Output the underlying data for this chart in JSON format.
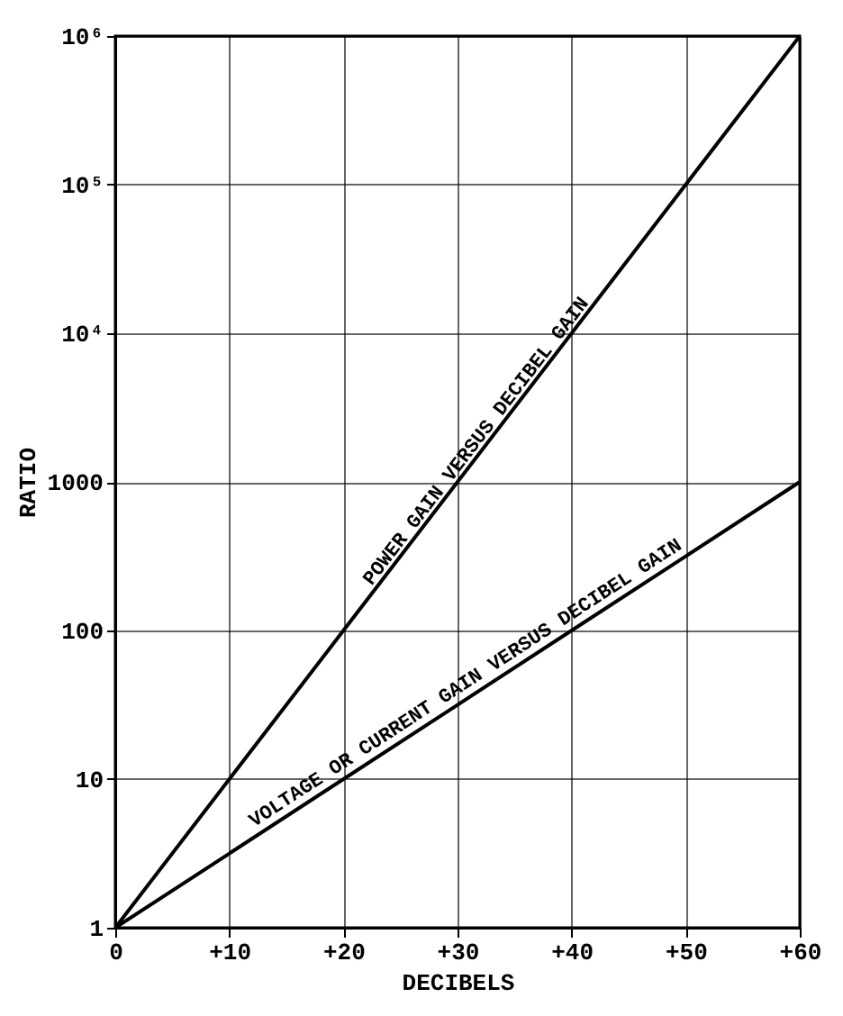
{
  "chart_data": {
    "type": "line",
    "xlabel": "DECIBELS",
    "ylabel": "RATIO",
    "x": [
      0,
      10,
      20,
      30,
      40,
      50,
      60
    ],
    "series": [
      {
        "color": "#000000",
        "values": [
          1,
          10,
          100,
          1000,
          10000,
          100000,
          1000000
        ]
      },
      {
        "color": "#000000",
        "values": [
          1,
          3.16,
          10,
          31.6,
          100,
          316,
          1000
        ]
      }
    ],
    "xlim": [
      0,
      60
    ],
    "xticks": [
      0,
      {
        "value": 10,
        "label": "+10"
      },
      {
        "value": 20,
        "label": "+20"
      },
      {
        "value": 30,
        "label": "+30"
      },
      {
        "value": 40,
        "label": "+40"
      },
      {
        "value": 50,
        "label": "+50"
      },
      {
        "value": 60,
        "label": "+60"
      }
    ],
    "ylim": [
      1,
      1000000
    ],
    "yticks": [
      1,
      10,
      100,
      1000,
      {
        "value": 10000,
        "label": "10⁴"
      },
      {
        "value": 100000,
        "label": "10⁵"
      },
      {
        "value": 1000000,
        "label": "10⁶"
      }
    ],
    "log": "y",
    "grid": true,
    "line_style": "solid",
    "marker": "none",
    "annotations": [
      {
        "text": "POWER GAIN VERSUS DECIBEL GAIN",
        "x": 33,
        "y": 2000
      },
      {
        "text": "VOLTAGE OR CURRENT GAIN VERSUS DECIBEL GAIN",
        "x": 32,
        "y": 40
      }
    ]
  }
}
